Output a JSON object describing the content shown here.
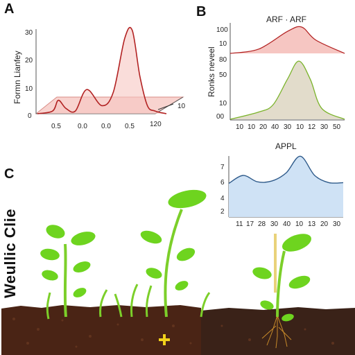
{
  "panels": {
    "a": {
      "letter": "A"
    },
    "b": {
      "letter": "B"
    },
    "c": {
      "letter": "C"
    }
  },
  "panel_c_title": "Weullic Clie",
  "colors": {
    "red_line": "#b22222",
    "red_fill": "#f6c6c2",
    "green_line": "#7ab32a",
    "green_fill": "#e2dccb",
    "blue_line": "#2e5a8a",
    "blue_fill": "#cfe2f5",
    "soil": "#4a2415",
    "leaf": "#6ed41f",
    "stem": "#7ccf2a",
    "plus": "#f2d21b"
  },
  "chart_data": [
    {
      "type": "area",
      "panel": "A",
      "ylabel": "Formn Lianfey",
      "y_ticks": [
        "30",
        "20",
        "10",
        "0"
      ],
      "x_ticks": [
        "0.5",
        "0.0",
        "0.0",
        "0.5",
        "120"
      ],
      "z_ticks": [
        "10"
      ],
      "x": [
        0,
        0.4,
        0.55,
        0.75,
        1.0,
        1.3,
        1.7,
        2.0,
        2.3,
        2.5,
        2.7,
        2.9,
        3.1,
        3.4
      ],
      "values": [
        0,
        1,
        5,
        2,
        1,
        9,
        3,
        8,
        28,
        31,
        14,
        3,
        1,
        0
      ]
    },
    {
      "type": "area",
      "panel": "B-top",
      "title": "ARF · ARF",
      "y_ticks": [
        "100",
        "10"
      ],
      "x": [
        10,
        20,
        30,
        35,
        40,
        50
      ],
      "values": [
        0,
        2,
        10,
        12,
        6,
        0
      ]
    },
    {
      "type": "area",
      "panel": "B-mid",
      "ylabel": "Ronks neveel",
      "y_ticks": [
        "80",
        "50",
        "10",
        "00"
      ],
      "x_ticks": [
        "10",
        "10",
        "20",
        "40",
        "30",
        "10",
        "12",
        "30",
        "50"
      ],
      "x": [
        10,
        20,
        25,
        30,
        34,
        38,
        42,
        50
      ],
      "values": [
        0,
        10,
        20,
        55,
        80,
        55,
        15,
        0
      ]
    },
    {
      "type": "area",
      "panel": "B-lower",
      "title": "APPL",
      "y_ticks": [
        "7",
        "6",
        "4",
        "2"
      ],
      "x_ticks": [
        "11",
        "17",
        "28",
        "30",
        "40",
        "10",
        "13",
        "20",
        "30"
      ],
      "x": [
        0,
        1,
        2,
        3,
        4,
        5,
        6,
        7,
        8
      ],
      "values": [
        4.2,
        5.2,
        4.4,
        4.5,
        5.5,
        7.6,
        5.2,
        4.3,
        4.3
      ]
    }
  ]
}
